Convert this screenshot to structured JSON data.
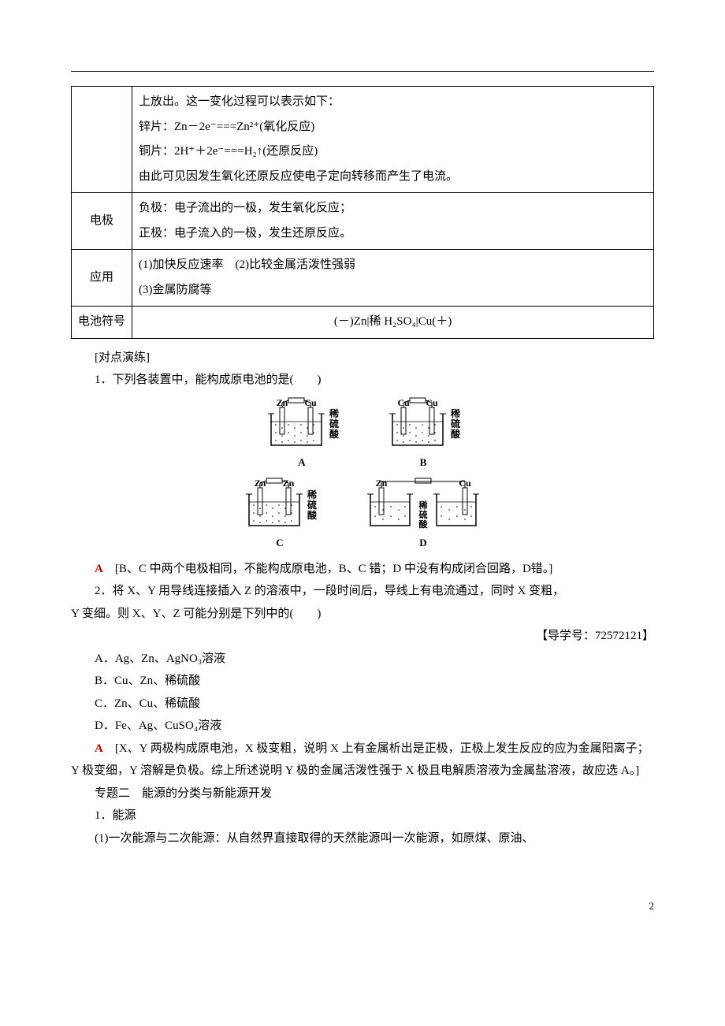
{
  "table": {
    "row0_lines": [
      "上放出。这一变化过程可以表示如下：",
      "锌片：Zn－2e⁻===Zn²⁺(氧化反应)",
      "铜片：2H⁺＋2e⁻===H₂↑(还原反应)",
      "由此可见因发生氧化还原反应使电子定向转移而产生了电流。"
    ],
    "row1_label": "电极",
    "row1_lines": [
      "负极：电子流出的一极，发生氧化反应；",
      "正极：电子流入的一极，发生还原反应。"
    ],
    "row2_label": "应用",
    "row2_lines": [
      "(1)加快反应速率　(2)比较金属活泼性强弱",
      "(3)金属防腐等"
    ],
    "row3_label": "电池符号",
    "row3_content": "(－)Zn|稀 H₂SO₄|Cu(＋)"
  },
  "exercise_heading": "[对点演练]",
  "q1_stem": "1．下列各装置中，能构成原电池的是(　　)",
  "diagrams": {
    "A": {
      "left": "Zn",
      "right": "Cu",
      "liquid": "稀硫酸",
      "letter": "A",
      "double_beaker": false
    },
    "B": {
      "left": "Cu",
      "right": "Cu",
      "liquid": "稀硫酸",
      "letter": "B",
      "double_beaker": false
    },
    "C": {
      "left": "Zn",
      "right": "Zn",
      "liquid": "稀硫酸",
      "letter": "C",
      "double_beaker": false
    },
    "D": {
      "left": "Zn",
      "right": "Cu",
      "liquid": "稀硫酸",
      "letter": "D",
      "double_beaker": true
    }
  },
  "q1_answer_letter": "A",
  "q1_answer_text": "　[B、C 中两个电极相同，不能构成原电池，B、C 错；D 中没有构成闭合回路，D错。]",
  "q2_stem_a": "2．将 X、Y 用导线连接插入 Z 的溶液中，一段时间后，导线上有电流通过，同时 X 变粗，",
  "q2_stem_b": "Y 变细。则 X、Y、Z 可能分别是下列中的(　　)",
  "q2_ref": "【导学号：72572121】",
  "q2_options": {
    "A": "A．Ag、Zn、AgNO₃溶液",
    "B": "B．Cu、Zn、稀硫酸",
    "C": "C．Zn、Cu、稀硫酸",
    "D": "D．Fe、Ag、CuSO₄溶液"
  },
  "q2_answer_letter": "A",
  "q2_answer_text": "　[X、Y 两极构成原电池，X 极变粗，说明 X 上有金属析出是正极，正极上发生反应的应为金属阳离子；Y 极变细，Y 溶解是负极。综上所述说明 Y 极的金属活泼性强于 X 极且电解质溶液为金属盐溶液，故应选 A。]",
  "topic2_title": "专题二　能源的分类与新能源开发",
  "topic2_item1": "1．能源",
  "topic2_item1_1": "(1)一次能源与二次能源：从自然界直接取得的天然能源叫一次能源，如原煤、原油、",
  "page_number": "2",
  "colors": {
    "answer_red": "#c00000",
    "text": "#000000",
    "background": "#ffffff",
    "border": "#000000"
  },
  "fontsizes": {
    "body": 15,
    "diagram_label": 12,
    "footer": 13
  }
}
